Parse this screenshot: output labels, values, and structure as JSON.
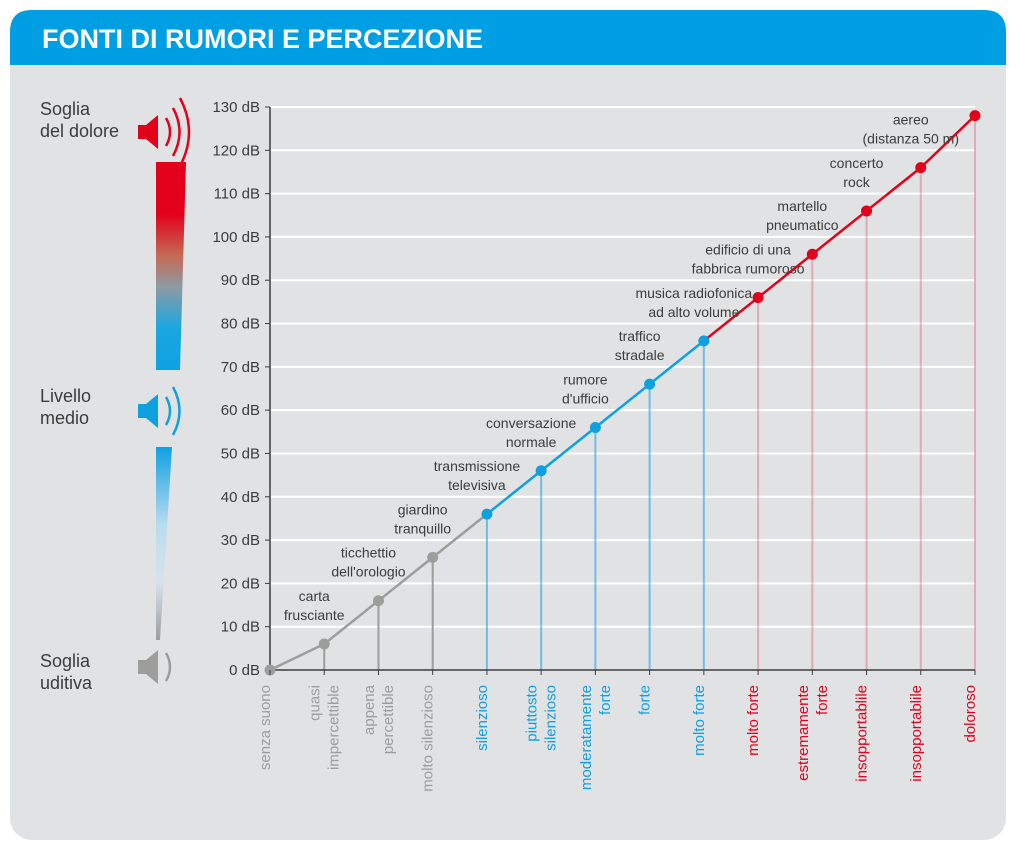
{
  "chart_data": {
    "type": "line",
    "title": "FONTI DI RUMORI E PERCEZIONE",
    "categories": [
      "senza suono",
      "quasi\nimpercettible",
      "appena\npercettible",
      "molto silenzioso",
      "silenzioso",
      "piuttosto\nsilenzioso",
      "moderatamente\nforte",
      "forte",
      "molto forte",
      "molto forte",
      "estremamente\nforte",
      "insopportablile",
      "insopportablile",
      "doloroso"
    ],
    "series": [
      {
        "values": [
          0,
          6,
          16,
          26,
          36,
          46,
          56,
          66,
          76,
          86,
          96,
          106,
          116,
          128
        ],
        "colors": [
          "#9d9d9c",
          "#9d9d9c",
          "#9d9d9c",
          "#9d9d9c",
          "#0ea1e2",
          "#0ea1e2",
          "#0ea1e2",
          "#0ea1e2",
          "#0ea1e2",
          "#e2001a",
          "#e2001a",
          "#e2001a",
          "#e2001a",
          "#e2001a"
        ],
        "line_colors": [
          "#9d9d9c",
          "#9d9d9c",
          "#9d9d9c",
          "#9d9d9c",
          "#0ea1e2",
          "#0ea1e2",
          "#0ea1e2",
          "#0ea1e2",
          "#e2001a",
          "#e2001a",
          "#e2001a",
          "#e2001a",
          "#e2001a"
        ],
        "annotations": [
          null,
          "carta\nfrusciante",
          "ticchettio\ndell'orologio",
          "giardino\ntranquillo",
          "transmissione\ntelevisiva",
          "conversazione\nnormale",
          "rumore\nd'ufficio",
          "traffico\nstradale",
          "musica radiofonica\nad alto volume",
          "edificio di una\nfabbrica rumoroso",
          "martello\npneumatico",
          "concerto\nrock",
          "aereo\n(distanza 50 m)",
          null
        ]
      }
    ],
    "ylim": [
      0,
      130
    ],
    "yticks": [
      {
        "value": 0,
        "label": "0 dB"
      },
      {
        "value": 10,
        "label": "10 dB"
      },
      {
        "value": 20,
        "label": "20 dB"
      },
      {
        "value": 30,
        "label": "30 dB"
      },
      {
        "value": 40,
        "label": "40 dB"
      },
      {
        "value": 50,
        "label": "50 dB"
      },
      {
        "value": 60,
        "label": "60 dB"
      },
      {
        "value": 70,
        "label": "70 dB"
      },
      {
        "value": 80,
        "label": "80 dB"
      },
      {
        "value": 90,
        "label": "90 dB"
      },
      {
        "value": 100,
        "label": "100 dB"
      },
      {
        "value": 110,
        "label": "110 dB"
      },
      {
        "value": 120,
        "label": "120 dB"
      },
      {
        "value": 130,
        "label": "130 dB"
      }
    ],
    "grid": true,
    "side_labels": [
      "Soglia\ndel dolore",
      "Livello\nmedio",
      "Soglia\nuditiva"
    ]
  }
}
